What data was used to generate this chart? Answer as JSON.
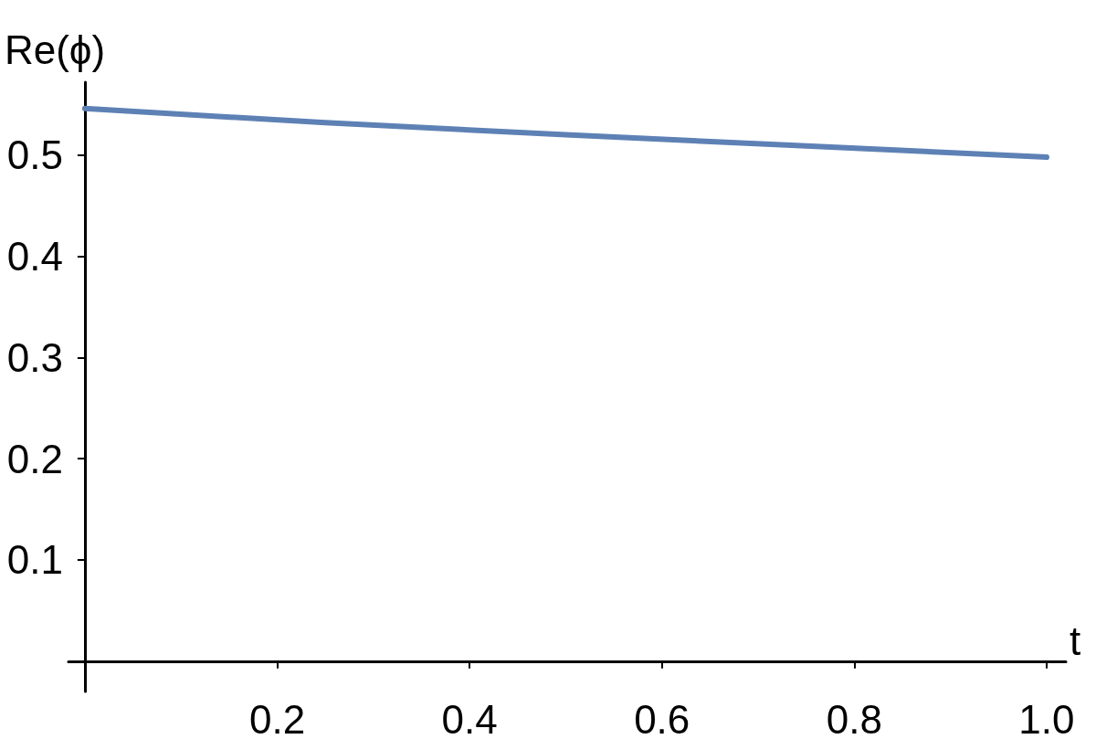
{
  "chart_data": {
    "type": "line",
    "xlabel": "t",
    "ylabel": "Re(ϕ)",
    "x": [
      0,
      0.25,
      0.5,
      0.75,
      1
    ],
    "series": [
      {
        "color": "#5e81b5",
        "values": [
          0.546,
          0.532,
          0.52,
          0.509,
          0.498
        ]
      }
    ],
    "xlim": [
      -0.017,
      1.02
    ],
    "ylim": [
      -0.03,
      0.572
    ],
    "xticks": [
      0.2,
      0.4,
      0.6,
      0.8,
      {
        "value": 1,
        "label": "1.0"
      }
    ],
    "yticks": [
      0.1,
      0.2,
      0.3,
      0.4,
      0.5
    ],
    "grid": false,
    "marker": "none",
    "line_style": "solid"
  }
}
